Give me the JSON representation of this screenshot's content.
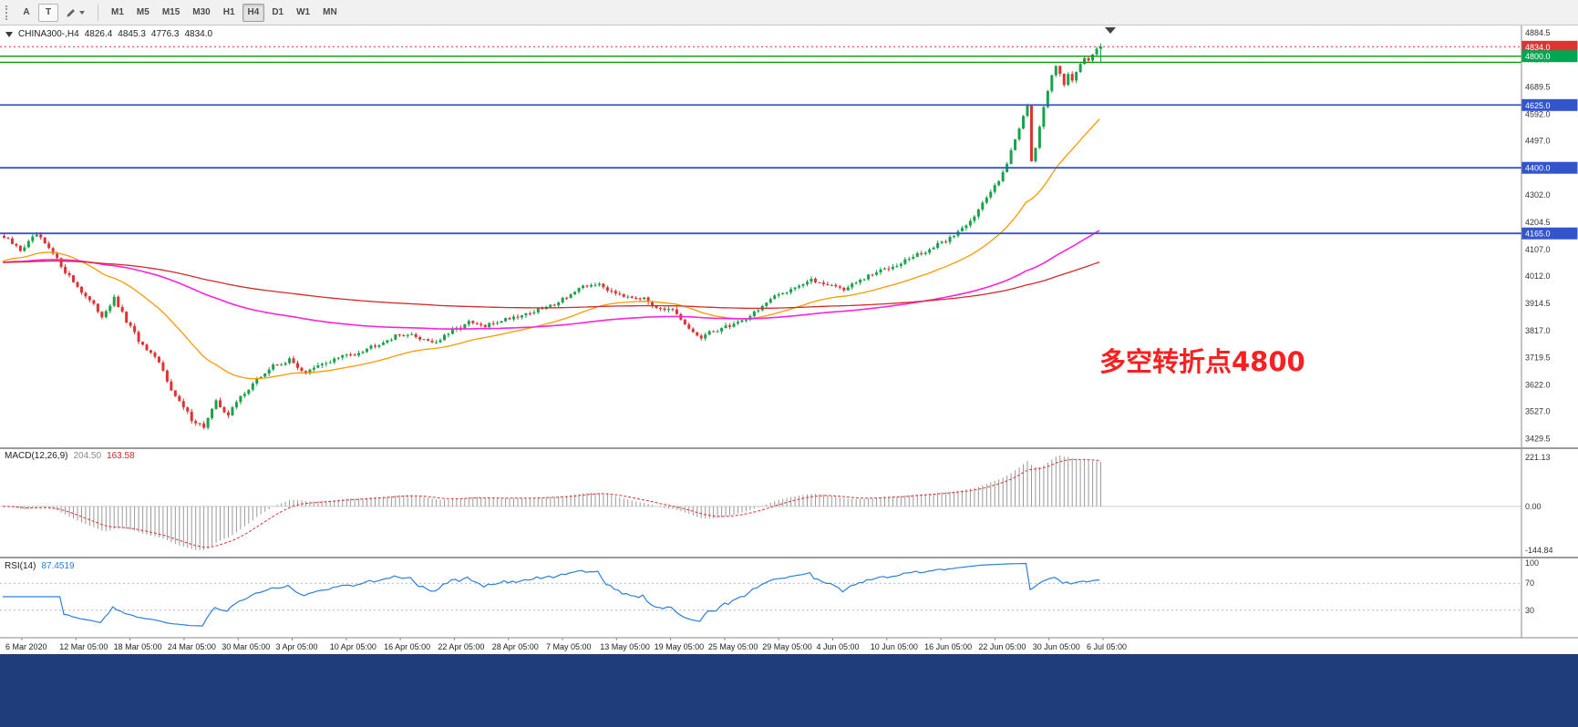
{
  "toolbar": {
    "a_label": "A",
    "t_label": "T",
    "timeframes": [
      "M1",
      "M5",
      "M15",
      "M30",
      "H1",
      "H4",
      "D1",
      "W1",
      "MN"
    ],
    "active_timeframe": "H4"
  },
  "chart": {
    "title": "CHINA300-,H4",
    "ohlc": {
      "open": "4826.4",
      "high": "4845.3",
      "low": "4776.3",
      "close": "4834.0"
    },
    "annotation": "多空转折点4800",
    "price_axis_ticks": [
      "4884.5",
      "4787.0",
      "4689.5",
      "4592.0",
      "4497.0",
      "4302.0",
      "4204.5",
      "4107.0",
      "4012.0",
      "3914.5",
      "3817.0",
      "3719.5",
      "3622.0",
      "3527.0",
      "3429.5"
    ],
    "price_badges": [
      {
        "label": "4834.0",
        "price": 4834.0,
        "type": "current"
      },
      {
        "label": "4800.0",
        "price": 4800.0,
        "type": "green"
      },
      {
        "label": "4625.0",
        "price": 4625.0,
        "type": "blue"
      },
      {
        "label": "4400.0",
        "price": 4400.0,
        "type": "blue"
      },
      {
        "label": "4165.0",
        "price": 4165.0,
        "type": "blue"
      }
    ],
    "hlines_green": [
      4800,
      4778
    ],
    "hlines_blue": [
      4625,
      4400,
      4165
    ],
    "current_price": 4834.0
  },
  "macd_panel": {
    "name": "MACD(12,26,9)",
    "value1": "204.50",
    "value2": "163.58",
    "axis_labels": [
      "221.13",
      "0.00",
      "-144.84"
    ]
  },
  "rsi_panel": {
    "name": "RSI(14)",
    "value": "87.4519",
    "axis_labels": [
      "100",
      "70",
      "30"
    ],
    "levels": [
      70,
      30
    ]
  },
  "time_axis": [
    "6 Mar 2020",
    "12 Mar 05:00",
    "18 Mar 05:00",
    "24 Mar 05:00",
    "30 Mar 05:00",
    "3 Apr 05:00",
    "10 Apr 05:00",
    "16 Apr 05:00",
    "22 Apr 05:00",
    "28 Apr 05:00",
    "7 May 05:00",
    "13 May 05:00",
    "19 May 05:00",
    "25 May 05:00",
    "29 May 05:00",
    "4 Jun 05:00",
    "10 Jun 05:00",
    "16 Jun 05:00",
    "22 Jun 05:00",
    "30 Jun 05:00",
    "6 Jul 05:00"
  ],
  "chart_data": {
    "type": "candlestick",
    "symbol": "CHINA300-",
    "period": "H4",
    "bars": 270,
    "price_range": [
      3395,
      4910
    ],
    "ema_init": 4060,
    "close_waypoints": [
      [
        0,
        4150
      ],
      [
        4,
        4105
      ],
      [
        8,
        4160
      ],
      [
        12,
        4090
      ],
      [
        16,
        4010
      ],
      [
        20,
        3940
      ],
      [
        24,
        3870
      ],
      [
        27,
        3930
      ],
      [
        30,
        3850
      ],
      [
        34,
        3760
      ],
      [
        38,
        3700
      ],
      [
        42,
        3580
      ],
      [
        46,
        3500
      ],
      [
        49,
        3472
      ],
      [
        52,
        3560
      ],
      [
        55,
        3515
      ],
      [
        58,
        3580
      ],
      [
        62,
        3640
      ],
      [
        66,
        3690
      ],
      [
        70,
        3710
      ],
      [
        74,
        3665
      ],
      [
        78,
        3695
      ],
      [
        82,
        3720
      ],
      [
        86,
        3735
      ],
      [
        90,
        3760
      ],
      [
        94,
        3785
      ],
      [
        98,
        3805
      ],
      [
        102,
        3790
      ],
      [
        106,
        3775
      ],
      [
        110,
        3815
      ],
      [
        114,
        3845
      ],
      [
        118,
        3830
      ],
      [
        122,
        3855
      ],
      [
        126,
        3870
      ],
      [
        130,
        3885
      ],
      [
        134,
        3905
      ],
      [
        138,
        3940
      ],
      [
        142,
        3970
      ],
      [
        145,
        3985
      ],
      [
        148,
        3965
      ],
      [
        152,
        3945
      ],
      [
        156,
        3935
      ],
      [
        160,
        3905
      ],
      [
        164,
        3885
      ],
      [
        168,
        3820
      ],
      [
        171,
        3790
      ],
      [
        174,
        3815
      ],
      [
        178,
        3835
      ],
      [
        182,
        3860
      ],
      [
        186,
        3905
      ],
      [
        190,
        3945
      ],
      [
        194,
        3975
      ],
      [
        198,
        3995
      ],
      [
        202,
        3985
      ],
      [
        206,
        3965
      ],
      [
        210,
        3995
      ],
      [
        214,
        4025
      ],
      [
        218,
        4050
      ],
      [
        222,
        4075
      ],
      [
        226,
        4100
      ],
      [
        230,
        4130
      ],
      [
        234,
        4170
      ],
      [
        238,
        4230
      ],
      [
        241,
        4290
      ],
      [
        244,
        4360
      ],
      [
        246,
        4420
      ],
      [
        248,
        4500
      ],
      [
        250,
        4590
      ],
      [
        251,
        4628
      ],
      [
        252,
        4430
      ],
      [
        253,
        4470
      ],
      [
        254,
        4540
      ],
      [
        255,
        4610
      ],
      [
        256,
        4680
      ],
      [
        257,
        4730
      ],
      [
        258,
        4770
      ],
      [
        259,
        4740
      ],
      [
        260,
        4700
      ],
      [
        261,
        4730
      ],
      [
        262,
        4710
      ],
      [
        263,
        4745
      ],
      [
        264,
        4775
      ],
      [
        265,
        4800
      ],
      [
        266,
        4780
      ],
      [
        267,
        4810
      ],
      [
        268,
        4826
      ],
      [
        269,
        4834
      ]
    ],
    "last_bar": {
      "open": 4826.4,
      "high": 4845.3,
      "low": 4776.3,
      "close": 4834.0
    },
    "overlays": [
      {
        "kind": "ema",
        "period": 34,
        "color_key": "ma_fast"
      },
      {
        "kind": "ema",
        "period": 150,
        "color_key": "ma_mid"
      },
      {
        "kind": "ema",
        "period": 300,
        "color_key": "ma_slow"
      }
    ],
    "indicators": [
      {
        "kind": "macd",
        "fast": 12,
        "slow": 26,
        "signal": 9
      },
      {
        "kind": "rsi",
        "period": 14
      }
    ]
  },
  "colors": {
    "candle_up": "#19a24a",
    "candle_down": "#e03232",
    "ma_fast": "#ff9900",
    "ma_mid": "#ff22dd",
    "ma_slow": "#d42a2a",
    "hline_green": "#00a000",
    "hline_blue": "#3355d0",
    "badge_current": "#e03232",
    "badge_green": "#00a651",
    "badge_blue": "#3355cc",
    "macd_hist": "#9a9a9a",
    "macd_signal": "#dd3333",
    "rsi_line": "#2a7fde",
    "annotation_red": "#fb1f1f",
    "bottom_bar": "#1f3d7a"
  }
}
